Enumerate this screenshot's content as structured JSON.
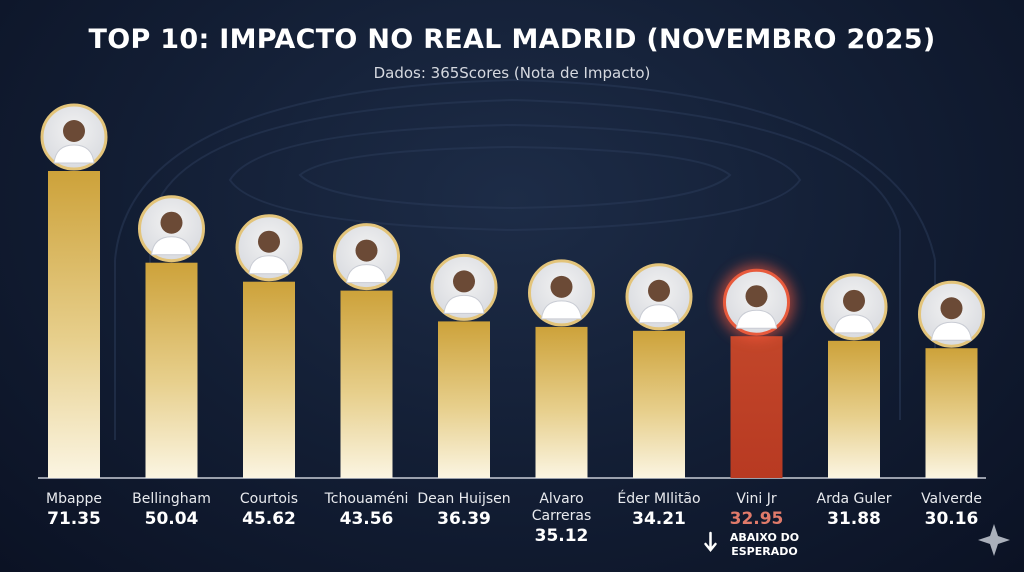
{
  "header": {
    "title": "TOP 10: IMPACTO NO REAL MADRID (NOVEMBRO 2025)",
    "subtitle": "Dados: 365Scores (Nota de Impacto)"
  },
  "colors": {
    "bar_gold": "#d4a93c",
    "bar_highlight": "#c2462a",
    "value_highlight": "#e07a6a",
    "avatar_ring": "#e3c47a",
    "highlight_glow": "#ff5a3c"
  },
  "chart_data": {
    "type": "bar",
    "title": "TOP 10: IMPACTO NO REAL MADRID (NOVEMBRO 2025)",
    "subtitle": "Dados: 365Scores (Nota de Impacto)",
    "categories": [
      "Mbappe",
      "Bellingham",
      "Courtois",
      "Tchouaméni",
      "Dean Huijsen",
      "Alvaro Carreras",
      "Éder MIlitão",
      "Vini Jr",
      "Arda Guler",
      "Valverde"
    ],
    "values": [
      71.35,
      50.04,
      45.62,
      43.56,
      36.39,
      35.12,
      34.21,
      32.95,
      31.88,
      30.16
    ],
    "value_labels": [
      "71.35",
      "50.04",
      "45.62",
      "43.56",
      "36.39",
      "35.12",
      "34.21",
      "32.95",
      "31.88",
      "30.16"
    ],
    "ylim": [
      0,
      74
    ],
    "grid": false,
    "highlight": {
      "category": "Vini Jr",
      "note": "ABAIXO DO ESPERADO",
      "icon": "arrow-down-icon"
    },
    "avatar_icon": "player-photo-icon"
  }
}
